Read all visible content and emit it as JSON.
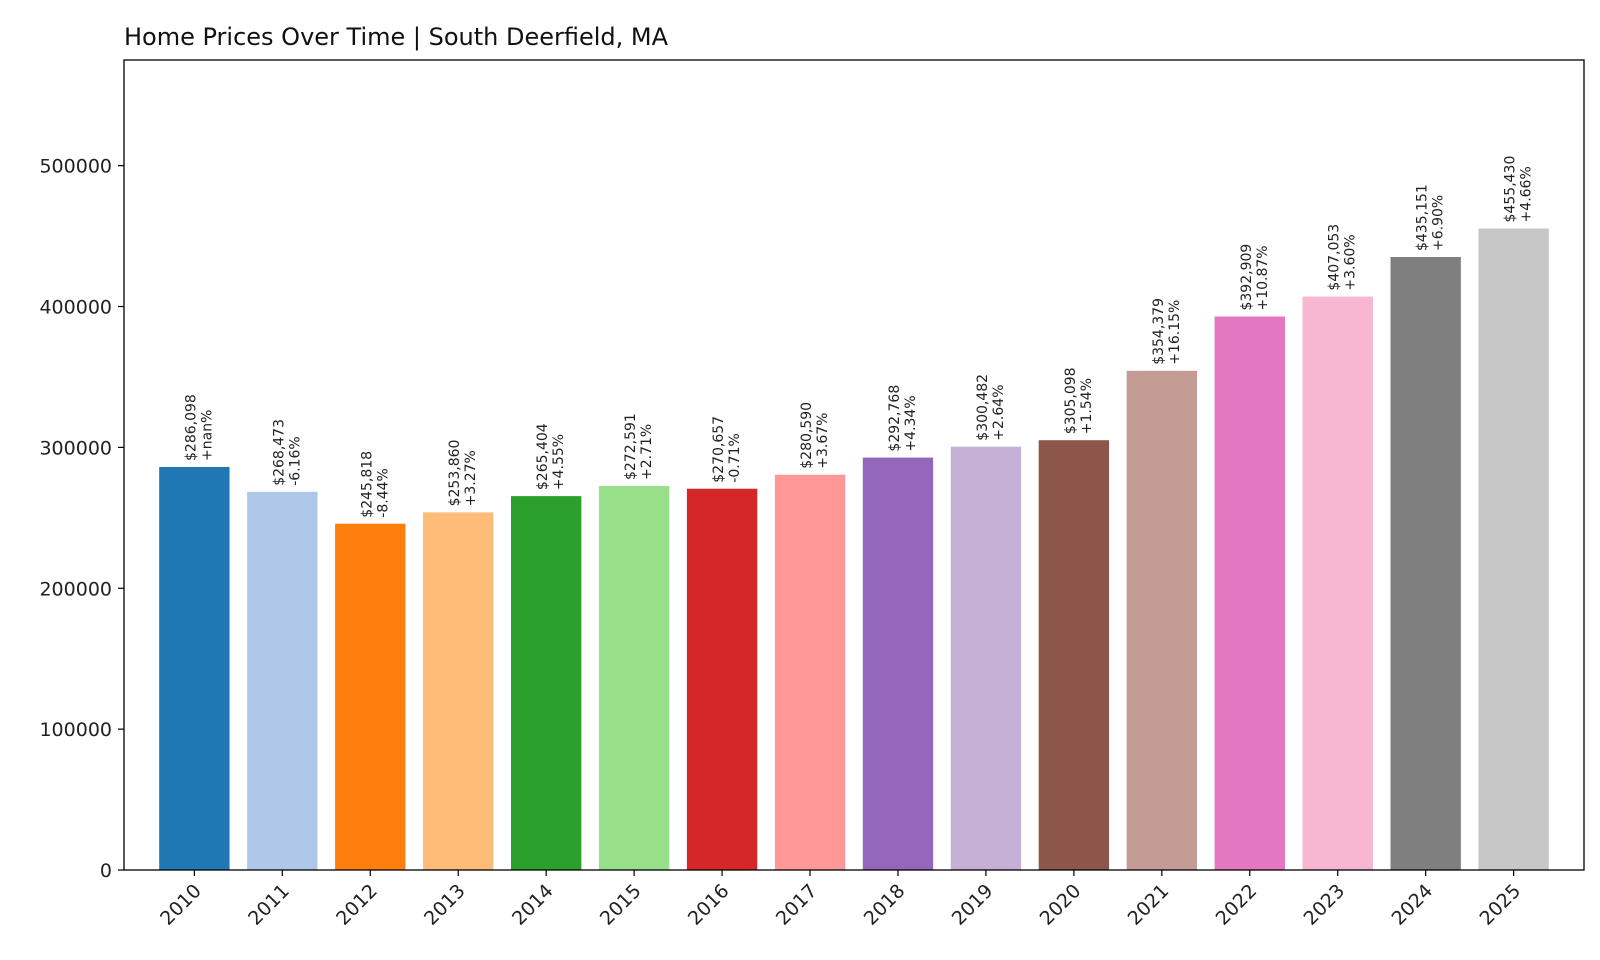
{
  "chart_data": {
    "type": "bar",
    "title": "Home Prices Over Time | South Deerfield, MA",
    "xlabel": "",
    "ylabel": "",
    "ylim": [
      0,
      575000
    ],
    "yticks": [
      0,
      100000,
      200000,
      300000,
      400000,
      500000
    ],
    "ytick_labels": [
      "0",
      "100000",
      "200000",
      "300000",
      "400000",
      "500000"
    ],
    "grid": false,
    "legend": "none",
    "categories": [
      "2010",
      "2011",
      "2012",
      "2013",
      "2014",
      "2015",
      "2016",
      "2017",
      "2018",
      "2019",
      "2020",
      "2021",
      "2022",
      "2023",
      "2024",
      "2025"
    ],
    "values": [
      286098,
      268473,
      245818,
      253860,
      265404,
      272591,
      270657,
      280590,
      292768,
      300482,
      305098,
      354379,
      392909,
      407053,
      435151,
      455430
    ],
    "value_labels": [
      "$286,098",
      "$268,473",
      "$245,818",
      "$253,860",
      "$265,404",
      "$272,591",
      "$270,657",
      "$280,590",
      "$292,768",
      "$300,482",
      "$305,098",
      "$354,379",
      "$392,909",
      "$407,053",
      "$435,151",
      "$455,430"
    ],
    "change_labels": [
      "+nan%",
      "-6.16%",
      "-8.44%",
      "+3.27%",
      "+4.55%",
      "+2.71%",
      "-0.71%",
      "+3.67%",
      "+4.34%",
      "+2.64%",
      "+1.54%",
      "+16.15%",
      "+10.87%",
      "+3.60%",
      "+6.90%",
      "+4.66%"
    ],
    "colors": [
      "#1f77b4",
      "#aec7e8",
      "#ff7f0e",
      "#ffbb78",
      "#2ca02c",
      "#98df8a",
      "#d62728",
      "#ff9896",
      "#9467bd",
      "#c5b0d5",
      "#8c564b",
      "#c49c94",
      "#e377c2",
      "#f7b6d2",
      "#7f7f7f",
      "#c7c7c7"
    ]
  }
}
